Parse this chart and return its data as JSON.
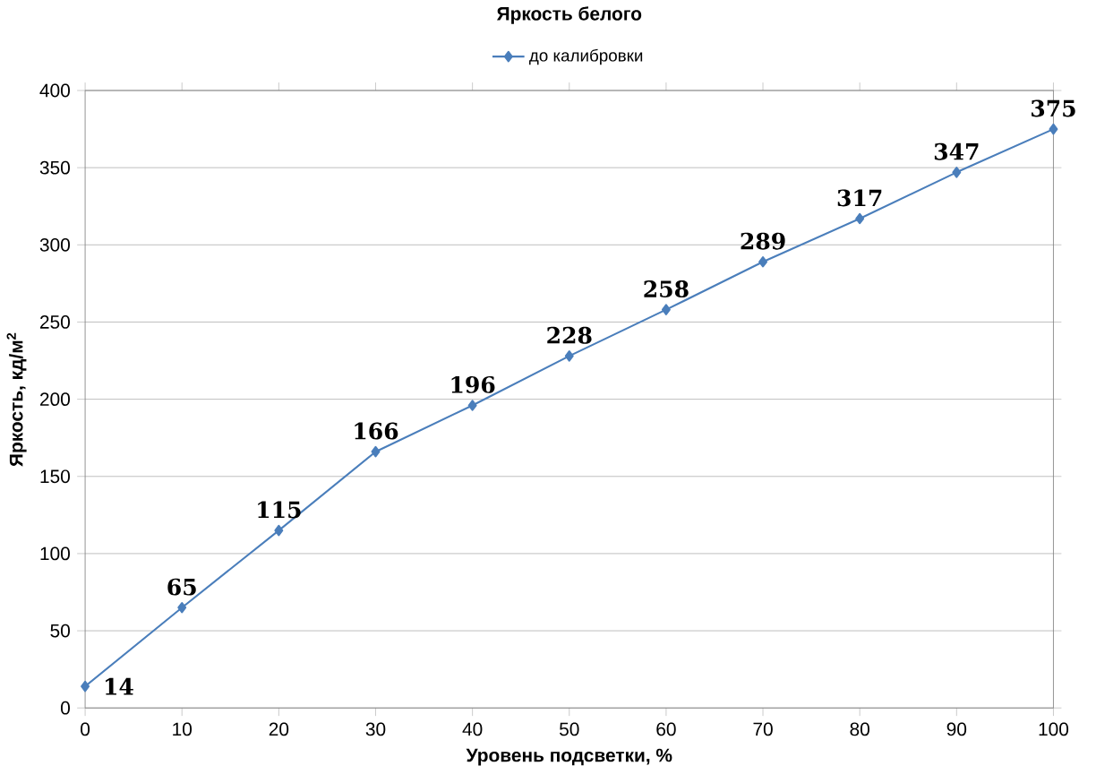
{
  "chart_data": {
    "type": "line",
    "title": "Яркость белого",
    "xlabel": "Уровень подсветки, %",
    "ylabel": "Яркость, кд/м$^{2}$",
    "x": [
      0,
      10,
      20,
      30,
      40,
      50,
      60,
      70,
      80,
      90,
      100
    ],
    "series": [
      {
        "name": "до калибровки",
        "color": "#4a7ebb",
        "values": [
          14,
          65,
          115,
          166,
          196,
          228,
          258,
          289,
          317,
          347,
          375
        ]
      }
    ],
    "xlim": [
      0,
      100
    ],
    "xticks": [
      0,
      10,
      20,
      30,
      40,
      50,
      60,
      70,
      80,
      90,
      100
    ],
    "ylim": [
      0,
      400
    ],
    "yticks": [
      0,
      50,
      100,
      150,
      200,
      250,
      300,
      350,
      400
    ],
    "grid": "y",
    "legend": "top",
    "marker": "diamond",
    "line_style": "solid",
    "data_labels": true
  }
}
